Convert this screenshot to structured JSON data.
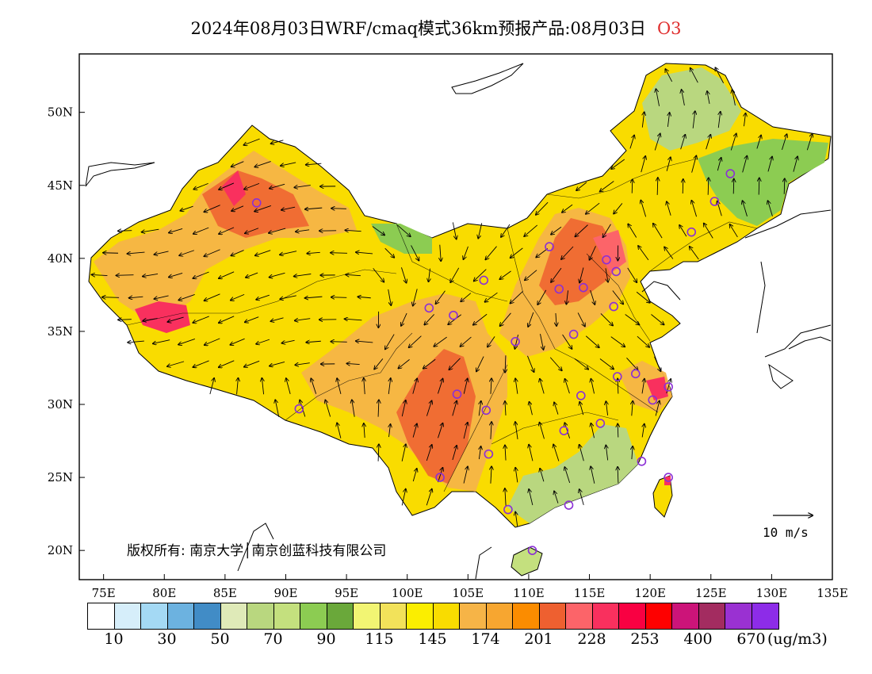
{
  "title": {
    "main": "2024年08月03日WRF/cmaq模式36km预报产品:08月03日",
    "species": "O3",
    "species_color": "#e03030"
  },
  "map": {
    "lon_range": [
      73,
      135
    ],
    "lat_range": [
      18,
      54
    ],
    "lon_ticks": [
      "75E",
      "80E",
      "85E",
      "90E",
      "95E",
      "100E",
      "105E",
      "110E",
      "115E",
      "120E",
      "125E",
      "130E",
      "135E"
    ],
    "lat_ticks": [
      "20N",
      "25N",
      "30N",
      "35N",
      "40N",
      "45N",
      "50N"
    ],
    "background": "#ffffff",
    "station_marker_color": "#8b2fd6",
    "stations": [
      {
        "lon": 87.6,
        "lat": 43.8
      },
      {
        "lon": 91.1,
        "lat": 29.7
      },
      {
        "lon": 101.8,
        "lat": 36.6
      },
      {
        "lon": 103.8,
        "lat": 36.1
      },
      {
        "lon": 106.3,
        "lat": 38.5
      },
      {
        "lon": 104.1,
        "lat": 30.7
      },
      {
        "lon": 106.5,
        "lat": 29.6
      },
      {
        "lon": 106.7,
        "lat": 26.6
      },
      {
        "lon": 102.7,
        "lat": 25.0
      },
      {
        "lon": 108.3,
        "lat": 22.8
      },
      {
        "lon": 110.3,
        "lat": 20.0
      },
      {
        "lon": 113.3,
        "lat": 23.1
      },
      {
        "lon": 108.9,
        "lat": 34.3
      },
      {
        "lon": 111.7,
        "lat": 40.8
      },
      {
        "lon": 112.5,
        "lat": 37.9
      },
      {
        "lon": 114.5,
        "lat": 38.0
      },
      {
        "lon": 116.4,
        "lat": 39.9
      },
      {
        "lon": 117.2,
        "lat": 39.1
      },
      {
        "lon": 117.0,
        "lat": 36.7
      },
      {
        "lon": 113.7,
        "lat": 34.8
      },
      {
        "lon": 114.3,
        "lat": 30.6
      },
      {
        "lon": 112.9,
        "lat": 28.2
      },
      {
        "lon": 115.9,
        "lat": 28.7
      },
      {
        "lon": 117.3,
        "lat": 31.9
      },
      {
        "lon": 118.8,
        "lat": 32.1
      },
      {
        "lon": 120.2,
        "lat": 30.3
      },
      {
        "lon": 121.5,
        "lat": 31.2
      },
      {
        "lon": 119.3,
        "lat": 26.1
      },
      {
        "lon": 121.5,
        "lat": 25.0
      },
      {
        "lon": 123.4,
        "lat": 41.8
      },
      {
        "lon": 125.3,
        "lat": 43.9
      },
      {
        "lon": 126.6,
        "lat": 45.8
      }
    ]
  },
  "copyright": "版权所有: 南京大学│南京创蓝科技有限公司",
  "wind_scale": {
    "label": "10 m/s"
  },
  "legend": {
    "colors": [
      "#ffffff",
      "#d6eefa",
      "#a4d9f4",
      "#6cb2e0",
      "#418cc6",
      "#dfeab8",
      "#b9d77f",
      "#c4e07e",
      "#8ccc52",
      "#6aa83a",
      "#f2f573",
      "#f2e25a",
      "#fbee00",
      "#f9dc00",
      "#f6b447",
      "#f7a630",
      "#fb8c00",
      "#ee6030",
      "#fc6469",
      "#f9305e",
      "#f90042",
      "#fe0000",
      "#cc1479",
      "#a32c60",
      "#9a31d2",
      "#8d2ce8"
    ],
    "labels": [
      "10",
      "30",
      "50",
      "70",
      "90",
      "115",
      "145",
      "174",
      "201",
      "228",
      "253",
      "400",
      "670"
    ],
    "unit": "(ug/m3)"
  }
}
